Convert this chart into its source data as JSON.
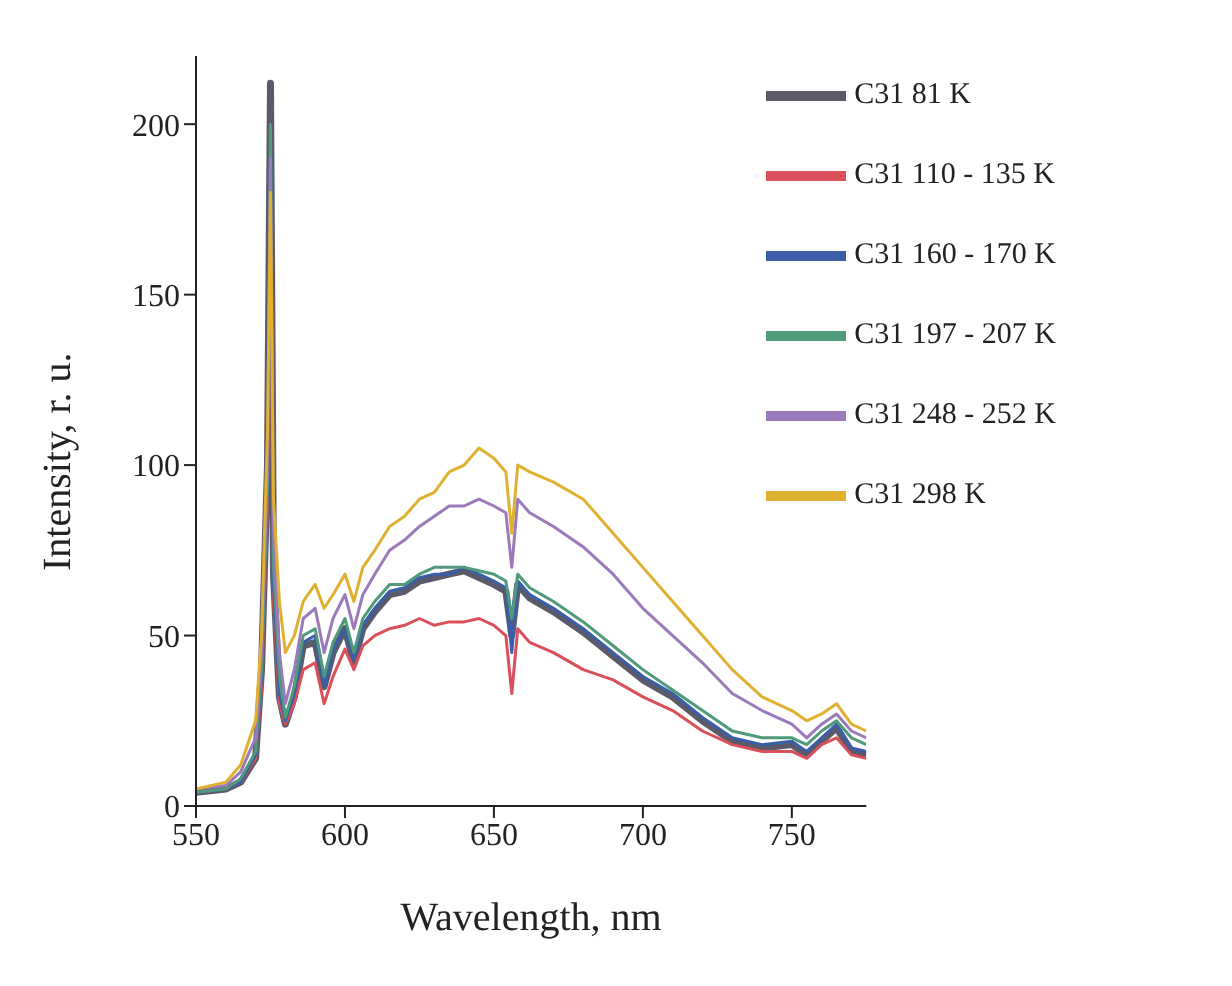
{
  "chart_data": {
    "type": "line",
    "xlabel": "Wavelength, nm",
    "ylabel": "Intensity, r. u.",
    "x": [
      550,
      560,
      565,
      570,
      572,
      574,
      575,
      576,
      578,
      580,
      583,
      586,
      590,
      593,
      596,
      600,
      603,
      606,
      610,
      615,
      620,
      625,
      630,
      635,
      640,
      645,
      650,
      654,
      656,
      658,
      662,
      670,
      680,
      690,
      700,
      710,
      720,
      730,
      740,
      750,
      755,
      760,
      765,
      770,
      775
    ],
    "series": [
      {
        "name": "C31 81 K",
        "color": "#5a5a6a",
        "values": [
          4,
          5,
          7,
          14,
          40,
          100,
          212,
          68,
          32,
          24,
          32,
          47,
          48,
          35,
          45,
          52,
          42,
          52,
          57,
          62,
          63,
          66,
          67,
          68,
          69,
          67,
          65,
          63,
          50,
          65,
          61,
          57,
          51,
          44,
          37,
          32,
          25,
          19,
          17,
          18,
          15,
          19,
          23,
          16,
          15
        ]
      },
      {
        "name": "C31 110 - 135 K",
        "color": "#d9505a",
        "values": [
          4,
          5,
          7,
          14,
          35,
          90,
          170,
          60,
          30,
          24,
          30,
          40,
          42,
          30,
          38,
          46,
          40,
          47,
          50,
          52,
          53,
          55,
          53,
          54,
          54,
          55,
          53,
          50,
          33,
          52,
          48,
          45,
          40,
          37,
          32,
          28,
          22,
          18,
          16,
          16,
          14,
          18,
          20,
          15,
          14
        ]
      },
      {
        "name": "C31 160 - 170 K",
        "color": "#3a5fa8",
        "values": [
          4,
          5,
          7,
          15,
          38,
          95,
          195,
          65,
          33,
          25,
          33,
          48,
          50,
          35,
          46,
          52,
          43,
          53,
          58,
          63,
          64,
          67,
          68,
          68,
          70,
          68,
          66,
          64,
          45,
          66,
          62,
          58,
          52,
          45,
          38,
          33,
          26,
          20,
          18,
          19,
          16,
          20,
          24,
          17,
          16
        ]
      },
      {
        "name": "C31 197 - 207 K",
        "color": "#4e9a7a",
        "values": [
          4,
          5,
          8,
          16,
          40,
          95,
          200,
          70,
          38,
          26,
          35,
          50,
          52,
          38,
          48,
          55,
          45,
          55,
          60,
          65,
          65,
          68,
          70,
          70,
          70,
          69,
          68,
          66,
          55,
          68,
          64,
          60,
          54,
          47,
          40,
          34,
          28,
          22,
          20,
          20,
          18,
          22,
          25,
          20,
          18
        ]
      },
      {
        "name": "C31 248 - 252 K",
        "color": "#9a7ab8",
        "values": [
          5,
          6,
          10,
          20,
          45,
          100,
          190,
          80,
          45,
          30,
          40,
          55,
          58,
          45,
          55,
          62,
          52,
          62,
          68,
          75,
          78,
          82,
          85,
          88,
          88,
          90,
          88,
          86,
          70,
          90,
          86,
          82,
          76,
          68,
          58,
          50,
          42,
          33,
          28,
          24,
          20,
          24,
          27,
          22,
          20
        ]
      },
      {
        "name": "C31 298 K",
        "color": "#e0b030",
        "values": [
          5,
          7,
          12,
          25,
          50,
          110,
          180,
          90,
          60,
          45,
          50,
          60,
          65,
          58,
          62,
          68,
          60,
          70,
          75,
          82,
          85,
          90,
          92,
          98,
          100,
          105,
          102,
          98,
          80,
          100,
          98,
          95,
          90,
          80,
          70,
          60,
          50,
          40,
          32,
          28,
          25,
          27,
          30,
          24,
          22
        ]
      }
    ],
    "xlim": [
      550,
      775
    ],
    "xticks": [
      550,
      600,
      650,
      700,
      750
    ],
    "ylim": [
      0,
      220
    ],
    "yticks": [
      0,
      50,
      100,
      150,
      200
    ],
    "grid": false,
    "legend": "top right",
    "marker": "none",
    "line_style": "solid"
  }
}
